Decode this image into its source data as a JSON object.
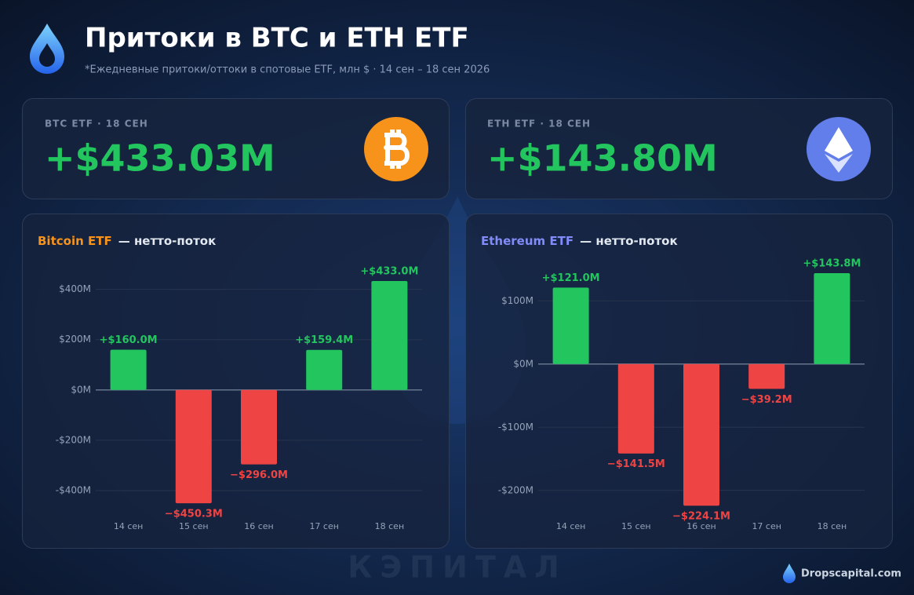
{
  "header": {
    "title": "Притоки в BTC и ETH ETF",
    "subtitle": "*Ежедневные притоки/оттоки в спотовые ETF, млн $ · 14 сен – 18 сен 2026"
  },
  "cards": [
    {
      "label": "BTC ETF · 18 СЕН",
      "value": "+$433.03M"
    },
    {
      "label": "ETH ETF · 18 СЕН",
      "value": "+$143.80M"
    }
  ],
  "chart_data": [
    {
      "type": "bar",
      "title": "Bitcoin ETF",
      "subtitle": "— нетто-поток",
      "title_color": "#f7931a",
      "categories": [
        "14 сен",
        "15 сен",
        "16 сен",
        "17 сен",
        "18 сен"
      ],
      "values": [
        160.0,
        -450.3,
        -296.0,
        159.4,
        433.0
      ],
      "value_labels": [
        "+$160.0M",
        "−$450.3M",
        "−$296.0M",
        "+$159.4M",
        "+$433.0M"
      ],
      "color_positive": "#22c55e",
      "color_negative": "#ef4444",
      "ylim": [
        -500,
        480
      ],
      "yticks": [
        {
          "value": 400,
          "label": "$400M"
        },
        {
          "value": 200,
          "label": "$200M"
        },
        {
          "value": 0,
          "label": "$0M"
        },
        {
          "value": -200,
          "label": "-$200M"
        },
        {
          "value": -400,
          "label": "-$400M"
        }
      ],
      "grid": true
    },
    {
      "type": "bar",
      "title": "Ethereum ETF",
      "subtitle": "— нетто-поток",
      "title_color": "#818cf8",
      "categories": [
        "14 сен",
        "15 сен",
        "16 сен",
        "17 сен",
        "18 сен"
      ],
      "values": [
        121.0,
        -141.5,
        -224.1,
        -39.2,
        143.8
      ],
      "value_labels": [
        "+$121.0M",
        "−$141.5M",
        "−$224.1M",
        "−$39.2M",
        "+$143.8M"
      ],
      "color_positive": "#22c55e",
      "color_negative": "#ef4444",
      "ylim": [
        -240,
        150
      ],
      "yticks": [
        {
          "value": 100,
          "label": "$100M"
        },
        {
          "value": 0,
          "label": "$0M"
        },
        {
          "value": -100,
          "label": "-$100M"
        },
        {
          "value": -200,
          "label": "-$200M"
        }
      ],
      "grid": true
    }
  ],
  "footer": {
    "watermark": "КЭПИТАЛ",
    "brand": "Dropscapital.com"
  }
}
